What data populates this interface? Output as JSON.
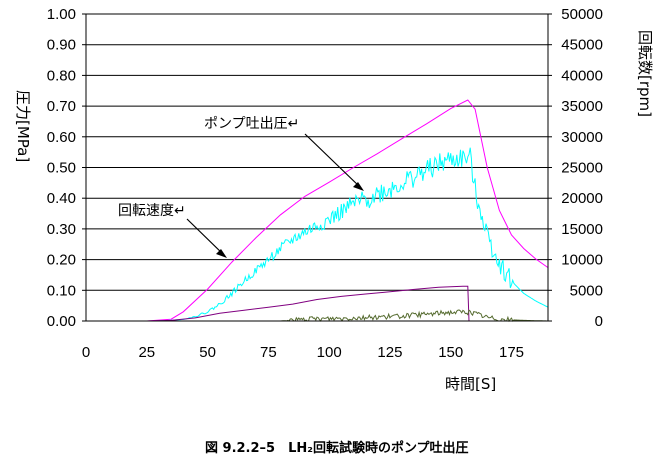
{
  "chart_data": {
    "type": "line",
    "caption": "図 9.2.2–5　LH₂回転試験時のポンプ吐出圧",
    "xlabel": "時間[S]",
    "ylabel_left": "圧力[MPa]",
    "ylabel_right": "回転数[rpm]",
    "xlim": [
      0,
      190
    ],
    "ylim_left": [
      0,
      1.0
    ],
    "ylim_right": [
      0,
      50000
    ],
    "x_ticks": [
      0,
      25,
      50,
      75,
      100,
      125,
      150,
      175
    ],
    "y_left_ticks": [
      "0.00",
      "0.10",
      "0.20",
      "0.30",
      "0.40",
      "0.50",
      "0.60",
      "0.70",
      "0.80",
      "0.90",
      "1.00"
    ],
    "y_right_ticks": [
      "0",
      "5000",
      "10000",
      "15000",
      "20000",
      "25000",
      "30000",
      "35000",
      "40000",
      "45000",
      "50000"
    ],
    "grid": "horizontal",
    "annotations": [
      {
        "text": "ポンプ吐出圧↵",
        "points_to": {
          "x": 113,
          "y": 0.42
        }
      },
      {
        "text": "回転速度↵",
        "points_to": {
          "x": 58,
          "y": 0.19
        }
      }
    ],
    "series": [
      {
        "key": "speed",
        "axis": "right",
        "color": "#ff00ff",
        "points": [
          [
            0,
            0
          ],
          [
            25,
            0
          ],
          [
            35,
            300
          ],
          [
            40,
            1500
          ],
          [
            50,
            5200
          ],
          [
            60,
            9600
          ],
          [
            70,
            13600
          ],
          [
            80,
            17300
          ],
          [
            90,
            20300
          ],
          [
            100,
            22600
          ],
          [
            110,
            25000
          ],
          [
            120,
            27300
          ],
          [
            130,
            29700
          ],
          [
            140,
            32100
          ],
          [
            150,
            34600
          ],
          [
            157,
            36000
          ],
          [
            160,
            34500
          ],
          [
            165,
            25000
          ],
          [
            170,
            18000
          ],
          [
            175,
            14000
          ],
          [
            180,
            11800
          ],
          [
            185,
            10100
          ],
          [
            190,
            8700
          ]
        ]
      },
      {
        "key": "pressure",
        "axis": "left",
        "color": "#00ffff",
        "points": [
          [
            0,
            0
          ],
          [
            30,
            0
          ],
          [
            40,
            0.005
          ],
          [
            45,
            0.015
          ],
          [
            50,
            0.03
          ],
          [
            55,
            0.055
          ],
          [
            60,
            0.09
          ],
          [
            65,
            0.13
          ],
          [
            70,
            0.165
          ],
          [
            75,
            0.2
          ],
          [
            80,
            0.235
          ],
          [
            85,
            0.265
          ],
          [
            90,
            0.29
          ],
          [
            95,
            0.31
          ],
          [
            100,
            0.33
          ],
          [
            105,
            0.355
          ],
          [
            110,
            0.38
          ],
          [
            115,
            0.395
          ],
          [
            120,
            0.415
          ],
          [
            125,
            0.43
          ],
          [
            130,
            0.45
          ],
          [
            135,
            0.47
          ],
          [
            140,
            0.49
          ],
          [
            145,
            0.51
          ],
          [
            150,
            0.525
          ],
          [
            155,
            0.53
          ],
          [
            158,
            0.53
          ],
          [
            160,
            0.43
          ],
          [
            163,
            0.34
          ],
          [
            166,
            0.26
          ],
          [
            170,
            0.19
          ],
          [
            175,
            0.13
          ],
          [
            180,
            0.09
          ],
          [
            185,
            0.065
          ],
          [
            190,
            0.045
          ]
        ]
      },
      {
        "key": "purple",
        "axis": "left",
        "color": "#800080",
        "points": [
          [
            0,
            0
          ],
          [
            25,
            0
          ],
          [
            35,
            0.002
          ],
          [
            45,
            0.01
          ],
          [
            55,
            0.025
          ],
          [
            65,
            0.035
          ],
          [
            75,
            0.045
          ],
          [
            85,
            0.055
          ],
          [
            95,
            0.07
          ],
          [
            105,
            0.08
          ],
          [
            115,
            0.088
          ],
          [
            125,
            0.095
          ],
          [
            135,
            0.103
          ],
          [
            145,
            0.11
          ],
          [
            155,
            0.113
          ],
          [
            157,
            0.113
          ],
          [
            157.5,
            0
          ],
          [
            190,
            0
          ]
        ]
      },
      {
        "key": "olive",
        "axis": "left",
        "color": "#556b2f",
        "points": [
          [
            0,
            0
          ],
          [
            80,
            0
          ],
          [
            90,
            0.005
          ],
          [
            100,
            0.008
          ],
          [
            110,
            0.01
          ],
          [
            120,
            0.013
          ],
          [
            130,
            0.016
          ],
          [
            140,
            0.022
          ],
          [
            148,
            0.028
          ],
          [
            155,
            0.03
          ],
          [
            160,
            0.025
          ],
          [
            165,
            0.012
          ],
          [
            170,
            0.006
          ],
          [
            180,
            0.002
          ],
          [
            190,
            0
          ]
        ]
      }
    ]
  }
}
